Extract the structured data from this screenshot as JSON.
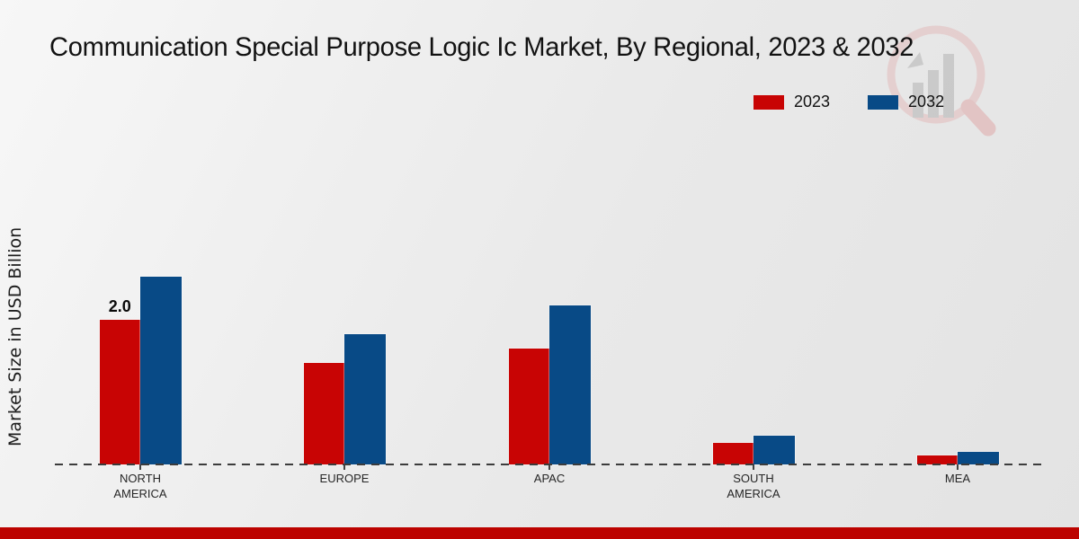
{
  "title": "Communication Special Purpose Logic Ic Market, By Regional, 2023 & 2032",
  "ylabel": "Market Size in USD Billion",
  "legend": [
    {
      "label": "2023",
      "color": "#c80404"
    },
    {
      "label": "2032",
      "color": "#084a86"
    }
  ],
  "footer": {
    "accent_color": "#bc0300"
  },
  "watermark_name": "magnifier-bar-chart-logo",
  "chart_data": {
    "type": "bar",
    "title": "Communication Special Purpose Logic Ic Market, By Regional, 2023 & 2032",
    "xlabel": "",
    "ylabel": "Market Size in USD Billion",
    "categories": [
      "NORTH AMERICA",
      "EUROPE",
      "APAC",
      "SOUTH AMERICA",
      "MEA"
    ],
    "series": [
      {
        "name": "2023",
        "color": "#c80404",
        "values": [
          2.0,
          1.4,
          1.6,
          0.3,
          0.13
        ]
      },
      {
        "name": "2032",
        "color": "#084a86",
        "values": [
          2.6,
          1.8,
          2.2,
          0.4,
          0.18
        ]
      }
    ],
    "data_labels": [
      {
        "series_index": 0,
        "category_index": 0,
        "text": "2.0"
      }
    ],
    "ylim": [
      0,
      2.8
    ],
    "grid": false,
    "legend_position": "top-right",
    "baseline_style": "dashed"
  }
}
